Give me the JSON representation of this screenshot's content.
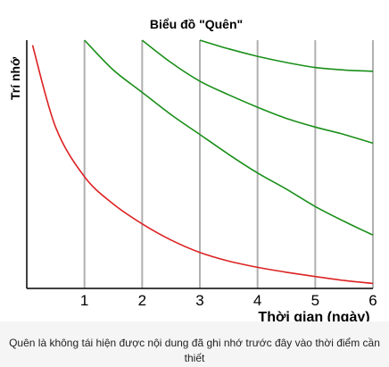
{
  "chart_data": {
    "type": "line",
    "title": "Biểu đồ \"Quên\"",
    "xlabel": "Thời gian (ngày)",
    "ylabel": "Trí nhớ",
    "xlim": [
      0,
      6
    ],
    "ylim": [
      0,
      100
    ],
    "x_ticks": [
      "1",
      "2",
      "3",
      "4",
      "5",
      "6"
    ],
    "grid": "vertical",
    "colors": {
      "forgetting": "#dd2222",
      "review": "#1a8f1a",
      "grid": "#b0b0b0",
      "axis": "#000000"
    },
    "series": [
      {
        "x": [
          0.1,
          0.5,
          1,
          1.5,
          2,
          2.5,
          3,
          3.5,
          4,
          4.5,
          5,
          5.5,
          6
        ],
        "y": [
          98,
          65,
          45,
          34,
          26,
          19.5,
          14.5,
          11,
          8.5,
          6.5,
          4.8,
          3.2,
          2
        ],
        "color_key": "forgetting"
      },
      {
        "x": [
          1,
          1.5,
          2,
          2.5,
          3,
          3.5,
          4,
          4.5,
          5,
          5.5,
          6
        ],
        "y": [
          100,
          88,
          79,
          70,
          62,
          54,
          46.5,
          40,
          33,
          27,
          21.5
        ],
        "color_key": "review"
      },
      {
        "x": [
          2,
          2.5,
          3,
          3.5,
          4,
          4.5,
          5,
          5.5,
          6
        ],
        "y": [
          100,
          91,
          83.5,
          78,
          73,
          68.5,
          65,
          62,
          58.5
        ],
        "color_key": "review"
      },
      {
        "x": [
          3,
          3.5,
          4,
          4.5,
          5,
          5.5,
          6
        ],
        "y": [
          100,
          96.5,
          93.5,
          91,
          89,
          88,
          87.5
        ],
        "color_key": "review"
      }
    ]
  },
  "caption": "Quên là không tái hiện được nội dung đã ghi nhớ trước đây vào thời điểm cần thiết"
}
